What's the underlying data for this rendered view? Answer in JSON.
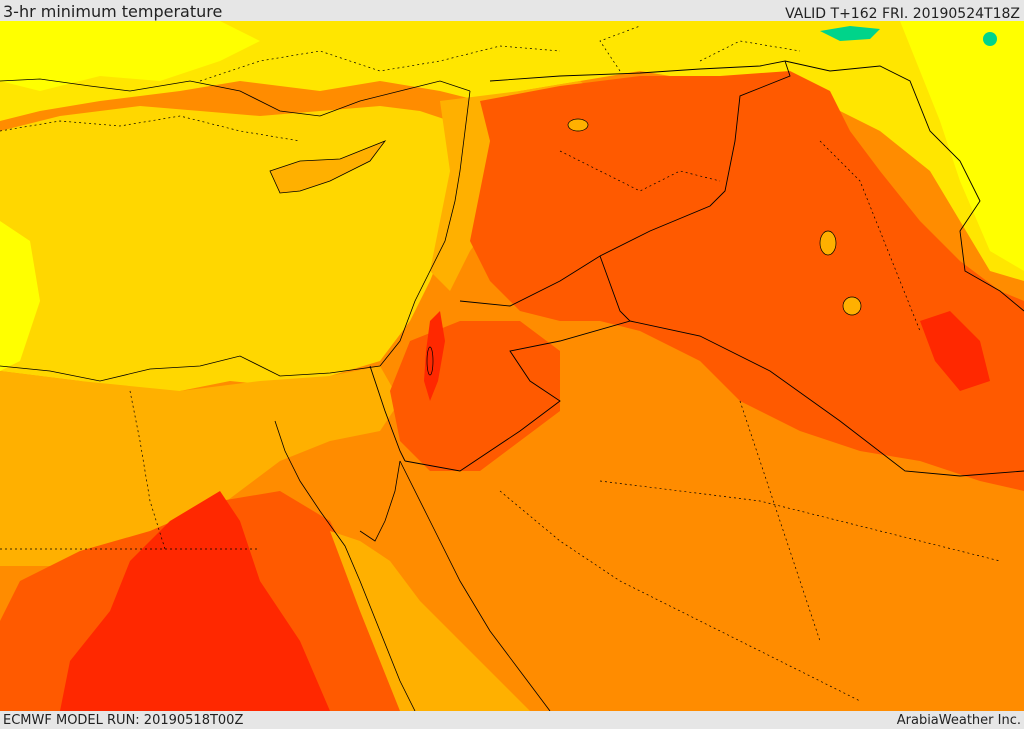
{
  "header": {
    "title": "3-hr minimum temperature",
    "valid": "VALID T+162 FRI. 20190524T18Z"
  },
  "footer": {
    "model_run": "ECMWF MODEL RUN: 20190518T00Z",
    "credit": "ArabiaWeather Inc."
  },
  "colors": {
    "yellow": "#ffff00",
    "light_orange": "#ffd700",
    "amber": "#ffb000",
    "orange": "#ff8c00",
    "dark_orange": "#ff5a00",
    "red": "#ff2800",
    "green": "#00d48a"
  }
}
